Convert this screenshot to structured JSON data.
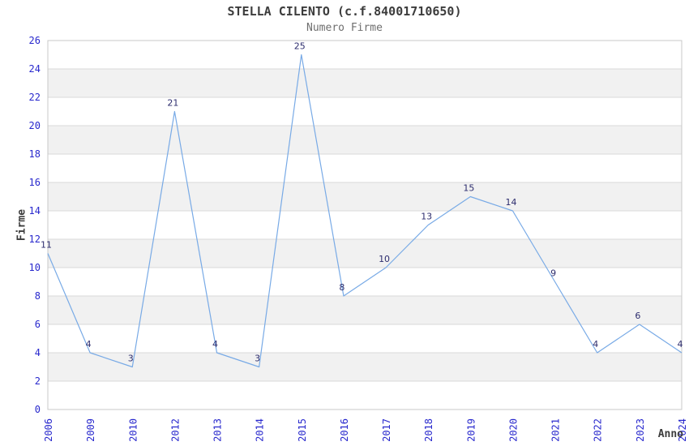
{
  "chart_data": {
    "type": "line",
    "title": "STELLA CILENTO (c.f.84001710650)",
    "subtitle": "Numero Firme",
    "xlabel": "Anno",
    "ylabel": "Firme",
    "categories": [
      "2006",
      "2009",
      "2010",
      "2012",
      "2013",
      "2014",
      "2015",
      "2016",
      "2017",
      "2018",
      "2019",
      "2020",
      "2021",
      "2022",
      "2023",
      "2024"
    ],
    "values": [
      11,
      4,
      3,
      21,
      4,
      3,
      25,
      8,
      10,
      13,
      15,
      14,
      9,
      4,
      6,
      4
    ],
    "ylim": [
      0,
      26
    ],
    "ytick_step": 2,
    "grid": true,
    "legend": "none",
    "band_ranges": [
      [
        2,
        4
      ],
      [
        6,
        8
      ],
      [
        10,
        12
      ],
      [
        14,
        16
      ],
      [
        18,
        20
      ],
      [
        22,
        24
      ]
    ],
    "colors": {
      "line": "#78aae6",
      "tick_label": "#2828cd",
      "data_label": "#2d2d6e",
      "band": "#f1f1f1",
      "grid": "#d9d9d9",
      "border": "#c8c8c8",
      "title": "#3c3c3c",
      "subtitle": "#6e6e6e",
      "axis_label": "#3c3c3c",
      "plot_background": "#ffffff"
    }
  }
}
